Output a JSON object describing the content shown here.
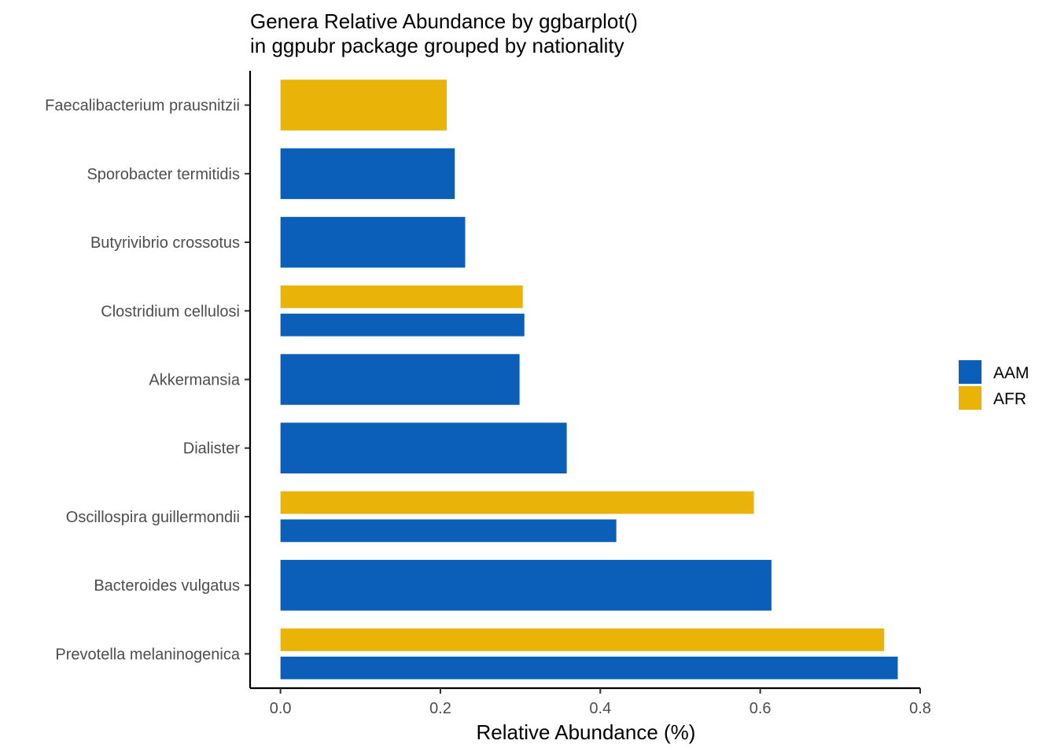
{
  "chart_data": {
    "type": "bar",
    "orientation": "horizontal",
    "title": "Genera Relative Abundance by ggbarplot()",
    "subtitle": "in ggpubr package grouped by nationality",
    "xlabel": "Relative Abundance (%)",
    "ylabel": "",
    "xlim": [
      -0.038,
      0.8
    ],
    "xticks": [
      0.0,
      0.2,
      0.4,
      0.6,
      0.8
    ],
    "xtick_labels": [
      "0.0",
      "0.2",
      "0.4",
      "0.6",
      "0.8"
    ],
    "grid": false,
    "legend_position": "right",
    "categories": [
      "Faecalibacterium prausnitzii",
      "Sporobacter termitidis",
      "Butyrivibrio crossotus",
      "Clostridium cellulosi",
      "Akkermansia",
      "Dialister",
      "Oscillospira guillermondii",
      "Bacteroides vulgatus",
      "Prevotella melaninogenica"
    ],
    "series": [
      {
        "name": "AAM",
        "color": "#0C5FB8",
        "values": [
          null,
          0.218,
          0.231,
          0.305,
          0.299,
          0.358,
          0.42,
          0.614,
          0.772
        ]
      },
      {
        "name": "AFR",
        "color": "#E9B308",
        "values": [
          0.208,
          null,
          null,
          0.303,
          null,
          null,
          0.592,
          null,
          0.755
        ]
      }
    ]
  }
}
